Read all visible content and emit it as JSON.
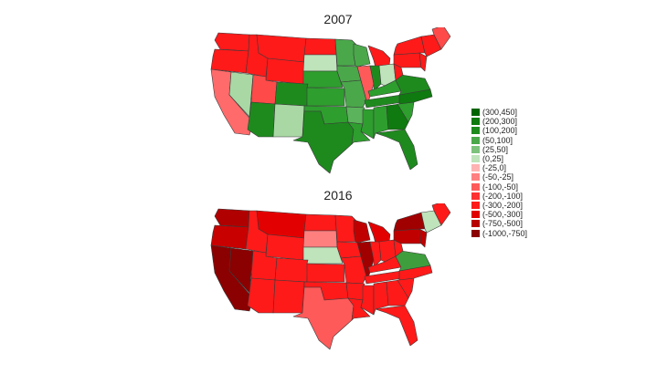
{
  "maps": [
    {
      "title": "2007",
      "regions": {
        "WA": "#ff1a1a",
        "OR": "#ff1a1a",
        "CA": "#ff6b6b",
        "NV": "#a9d8a4",
        "ID": "#ff1a1a",
        "MT": "#ff1a1a",
        "WY": "#ff1a1a",
        "UT": "#ff4a4a",
        "AZ": "#1e8a1e",
        "NM": "#a9d8a4",
        "CO": "#1e8a1e",
        "ND": "#ff1a1a",
        "SD": "#bfe3bb",
        "NE": "#2e9e2e",
        "KS": "#2e9e2e",
        "OK": "#2e9e2e",
        "TX": "#1e8a1e",
        "MN": "#4aa84a",
        "IA": "#4aa84a",
        "MO": "#4aa84a",
        "AR": "#5bb45b",
        "LA": "#2e9e2e",
        "WI": "#4aa84a",
        "IL": "#ff5a5a",
        "MS": "#2e9e2e",
        "MI": "#ff1a1a",
        "IN": "#1e8a1e",
        "OH": "#bfe3bb",
        "KY": "#2e9e2e",
        "TN": "#1e8a1e",
        "AL": "#2e9e2e",
        "GA": "#0f7a0f",
        "FL": "#1e8a1e",
        "SC": "#2e9e2e",
        "NC": "#0f7a0f",
        "VA": "#1e8a1e",
        "WV": "#ff1a1a",
        "PA": "#ff1a1a",
        "NY": "#ff1a1a",
        "NE_US": "#ff1a1a",
        "ME": "#ff4a4a",
        "NJ": "#ff1a1a"
      }
    },
    {
      "title": "2016",
      "regions": {
        "WA": "#b00000",
        "OR": "#c80000",
        "CA": "#8b0000",
        "NV": "#8b0000",
        "ID": "#ff1a1a",
        "MT": "#e30000",
        "WY": "#ff1a1a",
        "UT": "#ff1a1a",
        "AZ": "#ff1a1a",
        "NM": "#ff1a1a",
        "CO": "#ff1a1a",
        "ND": "#ff1a1a",
        "SD": "#ff7f7f",
        "NE": "#bfe3bb",
        "KS": "#ff1a1a",
        "OK": "#ff1a1a",
        "TX": "#ff5a5a",
        "MN": "#ff1a1a",
        "IA": "#ff1a1a",
        "MO": "#ff1a1a",
        "AR": "#ff1a1a",
        "LA": "#ff1a1a",
        "WI": "#c00000",
        "IL": "#a00000",
        "MS": "#ff1a1a",
        "MI": "#e30000",
        "IN": "#ff1a1a",
        "OH": "#ff1a1a",
        "KY": "#ff1a1a",
        "TN": "#ff1a1a",
        "AL": "#ff1a1a",
        "GA": "#ff1a1a",
        "FL": "#ff1a1a",
        "SC": "#ff1a1a",
        "NC": "#ff1a1a",
        "VA": "#3e9e3e",
        "WV": "#ff1a1a",
        "PA": "#c00000",
        "NY": "#a00000",
        "NE_US": "#bfe3bb",
        "ME": "#ff1a1a",
        "NJ": "#c00000"
      }
    }
  ],
  "legend": [
    {
      "label": "(300,450]",
      "color": "#006400"
    },
    {
      "label": "(200,300]",
      "color": "#0f7a0f"
    },
    {
      "label": "(100,200]",
      "color": "#1e8a1e"
    },
    {
      "label": "(50,100]",
      "color": "#4aa84a"
    },
    {
      "label": "(25,50]",
      "color": "#7cc27c"
    },
    {
      "label": "(0,25]",
      "color": "#bfe3bb"
    },
    {
      "label": "(-25,0]",
      "color": "#ffb3b3"
    },
    {
      "label": "(-50,-25]",
      "color": "#ff8080"
    },
    {
      "label": "(-100,-50]",
      "color": "#ff5a5a"
    },
    {
      "label": "(-200,-100]",
      "color": "#ff3030"
    },
    {
      "label": "(-300,-200]",
      "color": "#ff1a1a"
    },
    {
      "label": "(-500,-300]",
      "color": "#e00000"
    },
    {
      "label": "(-750,-500]",
      "color": "#b80000"
    },
    {
      "label": "(-1000,-750]",
      "color": "#8b0000"
    }
  ]
}
